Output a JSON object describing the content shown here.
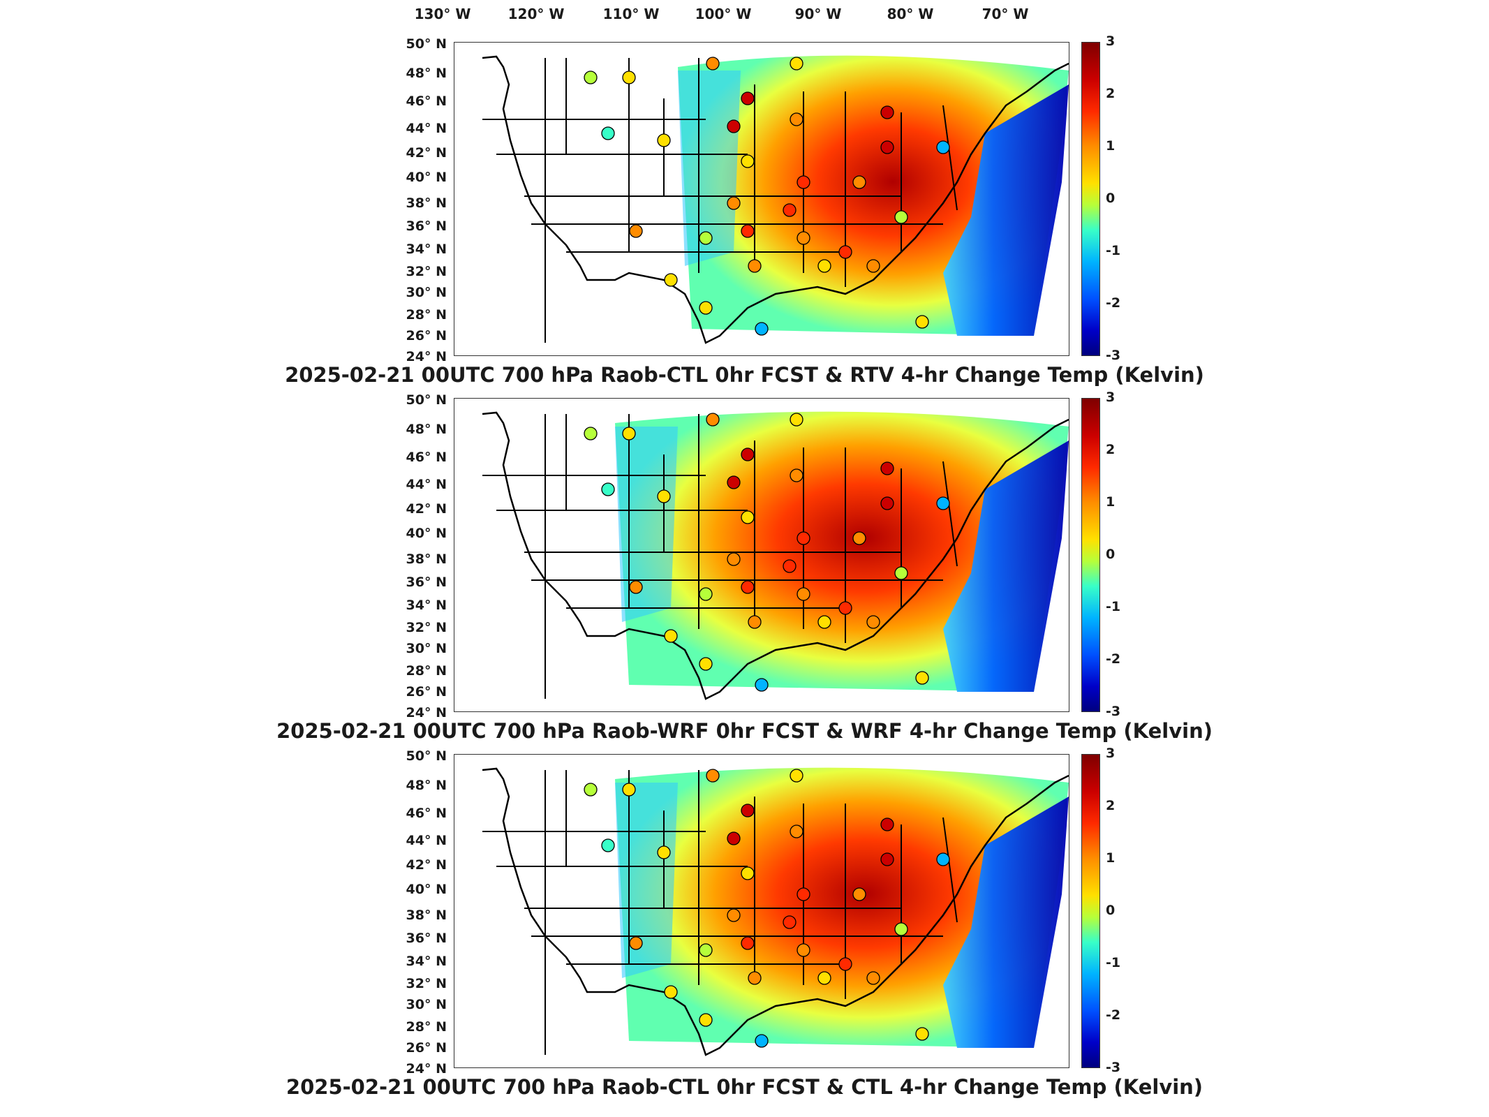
{
  "longitude_labels": [
    "130° W",
    "120° W",
    "110° W",
    "100° W",
    "90° W",
    "80° W",
    "70° W"
  ],
  "latitude_labels": [
    "50° N",
    "48° N",
    "46° N",
    "44° N",
    "42° N",
    "40° N",
    "38° N",
    "36° N",
    "34° N",
    "32° N",
    "30° N",
    "28° N",
    "26° N",
    "24° N"
  ],
  "colorbar_ticks": [
    "3",
    "2",
    "1",
    "0",
    "-1",
    "-2",
    "-3"
  ],
  "colors": {
    "warm_max": "#7f0000",
    "neutral": "#b6ff3a",
    "cold_max": "#00007f",
    "outline": "#000000"
  },
  "panels": [
    {
      "title": "2025-02-21 00UTC 700 hPa Raob-CTL 0hr FCST & RTV 4-hr Change Temp (Kelvin)"
    },
    {
      "title": "2025-02-21 00UTC 700 hPa Raob-WRF 0hr FCST & WRF 4-hr Change Temp (Kelvin)"
    },
    {
      "title": "2025-02-21 00UTC 700 hPa Raob-CTL 0hr FCST & CTL 4-hr Change Temp (Kelvin)"
    }
  ]
}
